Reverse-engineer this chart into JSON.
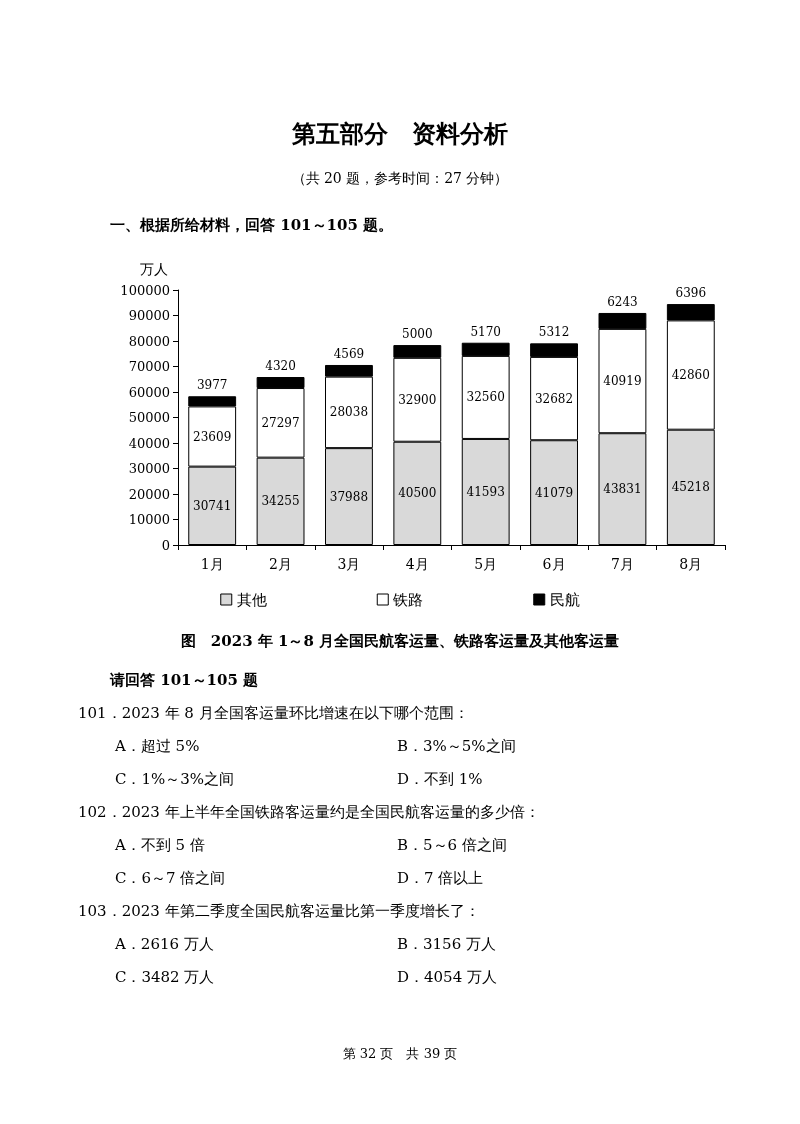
{
  "chart_data": {
    "type": "bar",
    "title": "图　2023 年 1～8 月全国民航客运量、铁路客运量及其他客运量",
    "subtitle": "（共 20 题，参考时间：27 分钟）",
    "ylabel": "万人",
    "categories": [
      "1月",
      "2月",
      "3月",
      "4月",
      "5月",
      "6月",
      "7月",
      "8月"
    ],
    "series": [
      {
        "name": "其他",
        "color": "#d9d9d9",
        "values": [
          30741,
          34255,
          37988,
          40500,
          41593,
          41079,
          43831,
          45218
        ]
      },
      {
        "name": "铁路",
        "color": "#ffffff",
        "values": [
          23609,
          27297,
          28038,
          32900,
          32560,
          32682,
          40919,
          42860
        ]
      },
      {
        "name": "民航",
        "color": "#000000",
        "values": [
          3977,
          4320,
          4569,
          5000,
          5170,
          5312,
          6243,
          6396
        ]
      }
    ],
    "stacked": true,
    "data_labels": true,
    "legend": "bottom",
    "ylim": [
      0,
      100000
    ],
    "yticks": [
      0,
      10000,
      20000,
      30000,
      40000,
      50000,
      60000,
      70000,
      80000,
      90000,
      100000
    ],
    "annotations": [
      "第五部分　资料分析",
      "一、根据所给材料，回答 101～105 题。",
      "请回答 101～105 题",
      "101．2023 年 8 月全国客运量环比增速在以下哪个范围：",
      "A．超过 5%\tB．3%～5%之间",
      "C．1%～3%之间\tD．不到 1%",
      "102．2023 年上半年全国铁路客运量约是全国民航客运量的多少倍：",
      "A．不到 5 倍\tB．5～6 倍之间",
      "C．6～7 倍之间\tD．7 倍以上",
      "103．2023 年第二季度全国民航客运量比第一季度增长了：",
      "A．2616 万人\tB．3156 万人",
      "C．3482 万人\tD．4054 万人",
      "第 32 页　共 39 页"
    ]
  }
}
